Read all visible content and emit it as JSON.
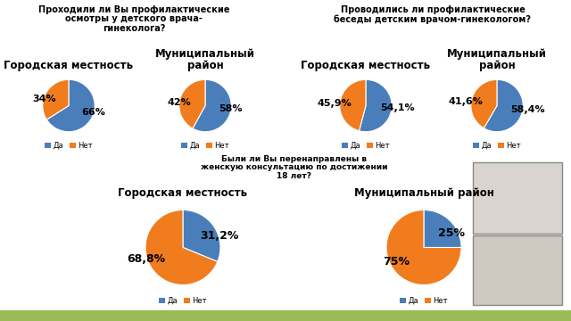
{
  "chart_data": [
    {
      "type": "pie",
      "subtitle": "Проходили ли Вы профилактические\nосмотры у детского врача-\nгинеколога?",
      "title": "Городская местность",
      "categories": [
        "Да",
        "Нет"
      ],
      "values": [
        66,
        34
      ],
      "value_labels": [
        "66%",
        "34%"
      ],
      "colors": [
        "#4a7ebb",
        "#f07c1e"
      ],
      "data_labels": true,
      "legend": "bottom"
    },
    {
      "type": "pie",
      "title": "Муниципальный\nрайон",
      "categories": [
        "Да",
        "Нет"
      ],
      "values": [
        58,
        42
      ],
      "value_labels": [
        "58%",
        "42%"
      ],
      "colors": [
        "#4a7ebb",
        "#f07c1e"
      ],
      "data_labels": true,
      "legend": "bottom"
    },
    {
      "type": "pie",
      "subtitle": "Проводились ли профилактические\nбеседы детским врачом-гинекологом?",
      "title": "Городская местность",
      "categories": [
        "Да",
        "Нет"
      ],
      "values": [
        54.1,
        45.9
      ],
      "value_labels": [
        "54,1%",
        "45,9%"
      ],
      "colors": [
        "#4a7ebb",
        "#f07c1e"
      ],
      "data_labels": true,
      "legend": "bottom"
    },
    {
      "type": "pie",
      "title": "Муниципальный\nрайон",
      "categories": [
        "Да",
        "Нет"
      ],
      "values": [
        58.4,
        41.6
      ],
      "value_labels": [
        "58,4%",
        "41,6%"
      ],
      "colors": [
        "#4a7ebb",
        "#f07c1e"
      ],
      "data_labels": true,
      "legend": "bottom"
    },
    {
      "type": "pie",
      "subtitle": "Были ли Вы перенаправлены в\nженскую консультацию по достижении\n18 лет?",
      "title": "Городская местность",
      "categories": [
        "Да",
        "Нет"
      ],
      "values": [
        31.2,
        68.8
      ],
      "value_labels": [
        "31,2%",
        "68,8%"
      ],
      "colors": [
        "#4a7ebb",
        "#f07c1e"
      ],
      "data_labels": true,
      "legend": "bottom"
    },
    {
      "type": "pie",
      "title": "Муниципальный район",
      "categories": [
        "Да",
        "Нет"
      ],
      "values": [
        25,
        75
      ],
      "value_labels": [
        "25%",
        "75%"
      ],
      "colors": [
        "#4a7ebb",
        "#f07c1e"
      ],
      "data_labels": true,
      "legend": "bottom"
    }
  ]
}
